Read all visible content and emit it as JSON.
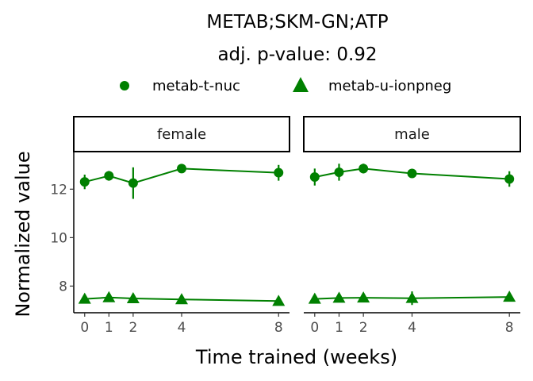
{
  "chart_data": {
    "type": "line",
    "title": "METAB;SKM-GN;ATP",
    "subtitle": "adj. p-value: 0.92",
    "xlabel": "Time trained (weeks)",
    "ylabel": "Normalized value",
    "x": [
      0,
      1,
      2,
      4,
      8
    ],
    "xticks": [
      "0",
      "1",
      "2",
      "4",
      "8"
    ],
    "yticks": [
      8,
      10,
      12
    ],
    "ylim": [
      6.9,
      13.55
    ],
    "xlim": [
      -0.45,
      8.45
    ],
    "legend_position": "top",
    "color": "#008000",
    "facets": [
      {
        "label": "female",
        "series": [
          {
            "name": "metab-t-nuc",
            "marker": "circle",
            "values": [
              12.3,
              12.55,
              12.25,
              12.85,
              12.68
            ],
            "lower": [
              12.0,
              12.35,
              11.6,
              12.78,
              12.35
            ],
            "upper": [
              12.6,
              12.75,
              12.9,
              12.92,
              13.0
            ]
          },
          {
            "name": "metab-u-ionpneg",
            "marker": "triangle",
            "values": [
              7.47,
              7.53,
              7.49,
              7.45,
              7.38
            ],
            "lower": [
              7.42,
              7.38,
              7.43,
              7.28,
              7.25
            ],
            "upper": [
              7.52,
              7.68,
              7.55,
              7.62,
              7.51
            ]
          }
        ]
      },
      {
        "label": "male",
        "series": [
          {
            "name": "metab-t-nuc",
            "marker": "circle",
            "values": [
              12.5,
              12.7,
              12.85,
              12.65,
              12.42
            ],
            "lower": [
              12.15,
              12.35,
              12.65,
              12.6,
              12.1
            ],
            "upper": [
              12.85,
              13.05,
              13.05,
              12.7,
              12.74
            ]
          },
          {
            "name": "metab-u-ionpneg",
            "marker": "triangle",
            "values": [
              7.47,
              7.51,
              7.52,
              7.5,
              7.55
            ],
            "lower": [
              7.42,
              7.36,
              7.38,
              7.22,
              7.48
            ],
            "upper": [
              7.52,
              7.66,
              7.66,
              7.78,
              7.62
            ]
          }
        ]
      }
    ]
  }
}
